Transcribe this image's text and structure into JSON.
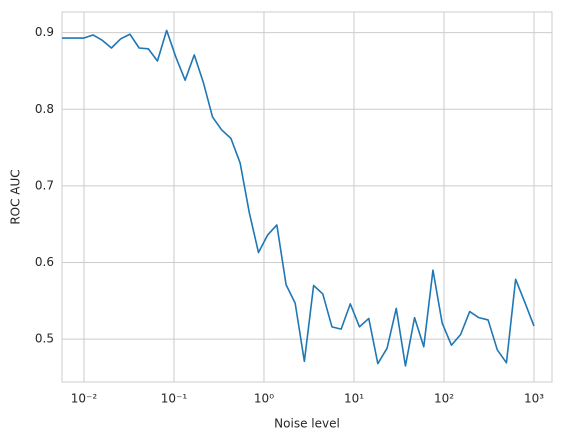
{
  "chart_data": {
    "type": "line",
    "xlabel": "Noise level",
    "ylabel": "ROC AUC",
    "x": [
      0.0057,
      0.01,
      0.0126,
      0.016,
      0.0202,
      0.0256,
      0.0324,
      0.041,
      0.0518,
      0.0655,
      0.0829,
      0.105,
      0.133,
      0.168,
      0.212,
      0.268,
      0.339,
      0.429,
      0.543,
      0.687,
      0.869,
      1.1,
      1.39,
      1.76,
      2.22,
      2.81,
      3.56,
      4.5,
      5.69,
      7.2,
      9.1,
      11.5,
      14.6,
      18.4,
      23.3,
      29.5,
      37.3,
      47.1,
      59.6,
      75.4,
      95.4,
      121,
      153,
      193,
      244,
      309,
      391,
      494,
      625,
      791,
      1000
    ],
    "series": [
      {
        "name": "ROC AUC",
        "color": "#1f77b4",
        "values": [
          0.893,
          0.893,
          0.897,
          0.89,
          0.88,
          0.892,
          0.898,
          0.88,
          0.879,
          0.863,
          0.903,
          0.868,
          0.838,
          0.871,
          0.835,
          0.79,
          0.773,
          0.762,
          0.73,
          0.665,
          0.613,
          0.636,
          0.649,
          0.571,
          0.547,
          0.471,
          0.57,
          0.559,
          0.516,
          0.513,
          0.546,
          0.516,
          0.527,
          0.468,
          0.488,
          0.54,
          0.465,
          0.528,
          0.49,
          0.59,
          0.521,
          0.492,
          0.506,
          0.536,
          0.528,
          0.525,
          0.486,
          0.469,
          0.578,
          0.548,
          0.517
        ]
      }
    ],
    "xscale": "log",
    "xlim": [
      0.0057,
      1585
    ],
    "ylim": [
      0.444,
      0.927
    ],
    "xticks": [
      {
        "value": 0.01,
        "label": "10⁻²"
      },
      {
        "value": 0.1,
        "label": "10⁻¹"
      },
      {
        "value": 1,
        "label": "10⁰"
      },
      {
        "value": 10,
        "label": "10¹"
      },
      {
        "value": 100,
        "label": "10²"
      },
      {
        "value": 1000,
        "label": "10³"
      }
    ],
    "yticks": [
      0.5,
      0.6,
      0.7,
      0.8,
      0.9
    ],
    "grid": true
  }
}
